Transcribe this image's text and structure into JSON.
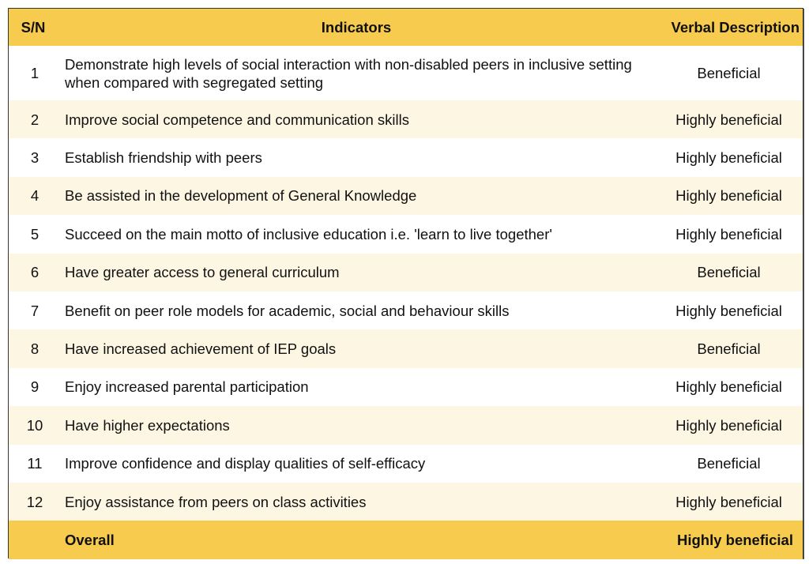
{
  "table": {
    "headers": {
      "sn": "S/N",
      "indicators": "Indicators",
      "verbal_description": "Verbal Description"
    },
    "rows": [
      {
        "sn": "1",
        "indicator": "Demonstrate high levels of social interaction with non-disabled peers in inclusive setting when compared with segregated setting",
        "description": "Beneficial"
      },
      {
        "sn": "2",
        "indicator": "Improve social competence and communication skills",
        "description": "Highly beneficial"
      },
      {
        "sn": "3",
        "indicator": "Establish friendship with peers",
        "description": "Highly beneficial"
      },
      {
        "sn": "4",
        "indicator": "Be assisted in the development of General Knowledge",
        "description": "Highly beneficial"
      },
      {
        "sn": "5",
        "indicator": "Succeed on the main motto of inclusive education i.e. 'learn to live together'",
        "description": "Highly beneficial"
      },
      {
        "sn": "6",
        "indicator": "Have greater access to general curriculum",
        "description": "Beneficial"
      },
      {
        "sn": "7",
        "indicator": "Benefit on peer role models for academic, social and behaviour skills",
        "description": "Highly beneficial"
      },
      {
        "sn": "8",
        "indicator": "Have increased achievement of IEP goals",
        "description": "Beneficial"
      },
      {
        "sn": "9",
        "indicator": "Enjoy increased parental participation",
        "description": "Highly beneficial"
      },
      {
        "sn": "10",
        "indicator": "Have higher expectations",
        "description": "Highly beneficial"
      },
      {
        "sn": "11",
        "indicator": "Improve confidence and display qualities of self-efficacy",
        "description": "Beneficial"
      },
      {
        "sn": "12",
        "indicator": "Enjoy assistance from peers on class activities",
        "description": "Highly beneficial"
      }
    ],
    "footer": {
      "sn": "",
      "label": "Overall",
      "description": "Highly beneficial"
    }
  },
  "colors": {
    "header_bg": "#f7cb4d",
    "row_alt_bg": "#fdf6e3",
    "row_bg": "#ffffff",
    "border": "#333333"
  }
}
